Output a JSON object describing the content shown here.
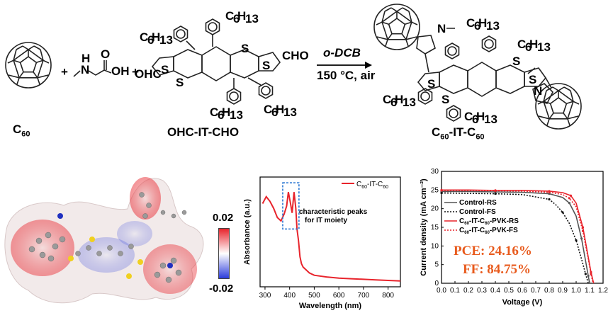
{
  "scheme": {
    "plus1": "+",
    "plus2": "+",
    "reagent": "o-DCB",
    "conditions": "150 °C, air",
    "compounds": [
      {
        "main": "C",
        "sub": "60"
      },
      {
        "main": "OHC-IT-CHO"
      },
      {
        "main": "C",
        "sub1": "60",
        "mid": "-IT-C",
        "sub2": "60"
      }
    ],
    "atoms": {
      "S": "S",
      "N": "N",
      "H": "H",
      "O": "O",
      "OH": "OH",
      "CHO": "CHO",
      "OHC": "OHC",
      "hexyl_main": "C",
      "hexyl_sub1": "6",
      "hexyl_mid": "H",
      "hexyl_sub2": "13"
    }
  },
  "esp_map": {
    "scale_max": "0.02",
    "scale_min": "-0.02",
    "colors": [
      "#e8242c",
      "#ffffff",
      "#2c3cdc"
    ]
  },
  "chart_abs": {
    "legend": {
      "main": "C",
      "sub1": "60",
      "mid": "-IT-C",
      "sub2": "60"
    },
    "annotation_line1": "characteristic peaks",
    "annotation_line2": "for IT moiety",
    "chart_data": {
      "type": "line",
      "xlabel": "Wavelength (nm)",
      "ylabel": "Absorbance (a.u.)",
      "xlim": [
        280,
        850
      ],
      "x_ticks": [
        "300",
        "400",
        "500",
        "600",
        "700",
        "800"
      ],
      "series": [
        {
          "name": "C60-IT-C60",
          "color": "#e8242c",
          "x": [
            290,
            305,
            320,
            335,
            350,
            365,
            378,
            388,
            395,
            402,
            410,
            418,
            425,
            430,
            436,
            442,
            448,
            455,
            465,
            480,
            500,
            550,
            600,
            650,
            700,
            750,
            800,
            850
          ],
          "y": [
            0.72,
            0.78,
            0.74,
            0.68,
            0.6,
            0.57,
            0.63,
            0.7,
            0.82,
            0.74,
            0.64,
            0.82,
            0.68,
            0.5,
            0.4,
            0.26,
            0.2,
            0.17,
            0.15,
            0.12,
            0.1,
            0.085,
            0.075,
            0.07,
            0.065,
            0.06,
            0.055,
            0.05
          ]
        }
      ]
    }
  },
  "chart_jv": {
    "pce": "PCE: 24.16%",
    "ff": "FF: 84.75%",
    "chart_data": {
      "type": "line",
      "xlabel": "Voltage (V)",
      "ylabel": "Current density (mA cm⁻²)",
      "xlim": [
        0,
        1.2
      ],
      "ylim": [
        0,
        30
      ],
      "x_ticks": [
        "0.0",
        "0.1",
        "0.2",
        "0.3",
        "0.4",
        "0.5",
        "0.6",
        "0.7",
        "0.8",
        "0.9",
        "1.0",
        "1.1",
        "1.2"
      ],
      "y_ticks": [
        "0",
        "5",
        "10",
        "15",
        "20",
        "25",
        "30"
      ],
      "series": [
        {
          "name": "Control-RS",
          "color": "#555555",
          "dash": "",
          "x": [
            0,
            0.2,
            0.4,
            0.6,
            0.8,
            0.9,
            0.95,
            1.0,
            1.04,
            1.07,
            1.09,
            1.1
          ],
          "y": [
            24.6,
            24.6,
            24.5,
            24.4,
            24.0,
            23.0,
            21.5,
            18.0,
            12.0,
            6.0,
            2.0,
            0
          ]
        },
        {
          "name": "Control-FS",
          "color": "#111111",
          "dash": "2,2",
          "x": [
            0,
            0.2,
            0.4,
            0.6,
            0.8,
            0.85,
            0.9,
            0.95,
            1.0,
            1.04,
            1.07,
            1.09
          ],
          "y": [
            24.2,
            24.1,
            24.0,
            23.8,
            22.5,
            21.0,
            19.0,
            16.0,
            11.5,
            6.5,
            2.5,
            0
          ]
        },
        {
          "name": "C60-IT-C60-PVK-RS",
          "color": "#e8242c",
          "dash": "",
          "x": [
            0,
            0.2,
            0.4,
            0.6,
            0.8,
            0.9,
            0.96,
            1.0,
            1.05,
            1.09,
            1.11,
            1.13
          ],
          "y": [
            25.0,
            25.0,
            24.9,
            24.9,
            24.7,
            24.3,
            23.5,
            21.5,
            15.0,
            7.0,
            3.0,
            0
          ]
        },
        {
          "name": "C60-IT-C60-PVK-FS",
          "color": "#e8242c",
          "dash": "2,2",
          "x": [
            0,
            0.2,
            0.4,
            0.6,
            0.8,
            0.9,
            0.95,
            1.0,
            1.05,
            1.09,
            1.11,
            1.125
          ],
          "y": [
            24.9,
            24.9,
            24.8,
            24.7,
            24.4,
            23.8,
            22.8,
            20.5,
            14.0,
            6.5,
            2.5,
            0
          ]
        }
      ],
      "legend": [
        {
          "main": "Control-RS"
        },
        {
          "main": "Control-FS"
        },
        {
          "main": "C",
          "sub": "60",
          "rest": "-IT-C",
          "sub2": "60",
          "tail": "-PVK-RS"
        },
        {
          "main": "C",
          "sub": "60",
          "rest": "-IT-C",
          "sub2": "60",
          "tail": "-PVK-FS"
        }
      ]
    }
  }
}
